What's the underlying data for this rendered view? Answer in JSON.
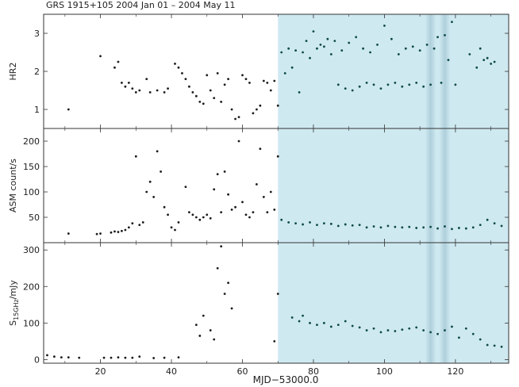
{
  "figure": {
    "title": "GRS 1915+105   2004 Jan 01 – 2004 May 11",
    "xlabel": "MJD−53000.0",
    "shade_color": "#cfe9f1",
    "band_color": "#a9cbd7",
    "colors": {
      "early_points": "#1b1b1b",
      "late_points": "#0d4a45"
    }
  },
  "chart_data": [
    {
      "type": "scatter",
      "ylabel": "HR2",
      "xlim": [
        4,
        135
      ],
      "ylim": [
        0.5,
        3.5
      ],
      "yticks": [
        1,
        2,
        3
      ],
      "xticks": [
        20,
        40,
        60,
        80,
        100,
        120
      ],
      "shaded_from_x": 70,
      "series": [
        {
          "x": [
            11,
            20,
            24,
            25,
            26,
            27,
            28,
            29,
            30,
            31,
            33,
            34,
            36,
            38,
            39,
            41,
            42,
            43,
            44,
            45,
            46,
            47,
            48,
            49,
            50,
            51,
            52,
            53,
            54,
            55,
            56,
            57,
            58,
            59,
            60,
            61,
            62,
            63,
            64,
            65,
            66,
            67,
            68,
            69,
            70
          ],
          "y": [
            1.0,
            2.4,
            2.1,
            2.25,
            1.7,
            1.6,
            1.7,
            1.55,
            1.45,
            1.5,
            1.8,
            1.45,
            1.5,
            1.45,
            1.55,
            2.2,
            2.1,
            1.95,
            1.8,
            1.6,
            1.45,
            1.35,
            1.2,
            1.15,
            1.9,
            1.5,
            1.3,
            1.95,
            1.2,
            1.65,
            1.8,
            1.0,
            0.75,
            0.8,
            1.9,
            1.8,
            1.7,
            0.9,
            1.0,
            1.1,
            1.75,
            1.7,
            1.5,
            1.75,
            1.1
          ]
        },
        {
          "x": [
            71,
            72,
            73,
            74,
            75,
            76,
            77,
            78,
            79,
            80,
            81,
            82,
            83,
            84,
            85,
            86,
            87,
            88,
            89,
            90,
            91,
            92,
            93,
            94,
            95,
            96,
            97,
            98,
            99,
            100,
            101,
            102,
            103,
            104,
            105,
            106,
            107,
            108,
            109,
            110,
            111,
            112,
            113,
            114,
            115,
            116,
            117,
            118,
            119,
            120,
            124,
            126,
            127,
            128,
            129,
            130,
            131
          ],
          "y": [
            2.5,
            1.95,
            2.6,
            2.1,
            2.55,
            1.45,
            2.5,
            2.8,
            2.35,
            3.05,
            2.6,
            2.7,
            2.65,
            2.85,
            2.45,
            2.8,
            1.65,
            2.55,
            1.55,
            2.75,
            1.5,
            2.9,
            1.6,
            2.6,
            1.7,
            2.5,
            1.65,
            2.7,
            1.55,
            3.2,
            1.65,
            2.85,
            1.7,
            2.45,
            1.6,
            2.6,
            1.65,
            2.65,
            1.7,
            2.55,
            1.6,
            2.7,
            1.65,
            2.6,
            2.9,
            1.7,
            2.95,
            2.3,
            3.3,
            1.65,
            2.45,
            2.1,
            2.6,
            2.3,
            2.35,
            2.2,
            2.25
          ]
        }
      ]
    },
    {
      "type": "scatter",
      "ylabel": "ASM count/s",
      "xlim": [
        4,
        135
      ],
      "ylim": [
        0,
        225
      ],
      "yticks": [
        50,
        100,
        150,
        200
      ],
      "xticks": [
        20,
        40,
        60,
        80,
        100,
        120
      ],
      "shaded_from_x": 70,
      "series": [
        {
          "x": [
            11,
            19,
            20,
            23,
            24,
            25,
            26,
            27,
            28,
            29,
            30,
            31,
            32,
            33,
            34,
            35,
            36,
            37,
            38,
            39,
            40,
            41,
            42,
            44,
            45,
            46,
            47,
            48,
            49,
            50,
            51,
            52,
            53,
            54,
            55,
            56,
            57,
            58,
            59,
            60,
            61,
            62,
            63,
            64,
            65,
            66,
            67,
            68,
            69,
            70
          ],
          "y": [
            18,
            17,
            18,
            20,
            22,
            21,
            23,
            25,
            30,
            38,
            170,
            35,
            40,
            100,
            120,
            90,
            180,
            140,
            70,
            55,
            30,
            25,
            40,
            110,
            60,
            55,
            50,
            45,
            50,
            55,
            48,
            105,
            135,
            60,
            140,
            95,
            65,
            70,
            200,
            80,
            55,
            50,
            60,
            115,
            185,
            90,
            60,
            100,
            65,
            170
          ]
        },
        {
          "x": [
            71,
            73,
            75,
            77,
            79,
            81,
            83,
            85,
            87,
            89,
            91,
            93,
            95,
            97,
            99,
            101,
            103,
            105,
            107,
            109,
            111,
            113,
            115,
            117,
            119,
            121,
            123,
            125,
            127,
            129,
            131,
            133
          ],
          "y": [
            45,
            40,
            38,
            36,
            40,
            35,
            38,
            37,
            33,
            36,
            34,
            35,
            30,
            32,
            30,
            33,
            31,
            30,
            31,
            29,
            30,
            31,
            28,
            32,
            27,
            29,
            28,
            30,
            35,
            45,
            38,
            33
          ]
        }
      ]
    },
    {
      "type": "scatter",
      "ylabel": "S15GHz/mJy",
      "ylabel_main": "S",
      "ylabel_sub": "15GHz",
      "ylabel_rest": "/mJy",
      "xlim": [
        4,
        135
      ],
      "ylim": [
        -10,
        320
      ],
      "yticks": [
        0,
        100,
        200,
        300
      ],
      "xticks": [
        20,
        40,
        60,
        80,
        100,
        120
      ],
      "shaded_from_x": 70,
      "series": [
        {
          "x": [
            5,
            7,
            9,
            11,
            14,
            21,
            23,
            25,
            27,
            29,
            31,
            35,
            38,
            42,
            47,
            48,
            49,
            51,
            52,
            53,
            54,
            55,
            56,
            57,
            69,
            70
          ],
          "y": [
            12,
            8,
            6,
            6,
            5,
            5,
            5,
            6,
            5,
            5,
            8,
            4,
            5,
            6,
            95,
            65,
            120,
            80,
            55,
            250,
            310,
            180,
            210,
            140,
            50,
            180
          ]
        },
        {
          "x": [
            74,
            76,
            77,
            79,
            81,
            83,
            85,
            87,
            89,
            91,
            93,
            95,
            97,
            99,
            101,
            103,
            105,
            107,
            109,
            111,
            113,
            115,
            117,
            119,
            121,
            123,
            125,
            127,
            129,
            131,
            133
          ],
          "y": [
            115,
            105,
            120,
            100,
            95,
            100,
            90,
            95,
            105,
            92,
            88,
            80,
            85,
            75,
            80,
            78,
            82,
            85,
            88,
            80,
            75,
            70,
            80,
            90,
            60,
            85,
            70,
            55,
            40,
            38,
            35
          ]
        }
      ]
    }
  ]
}
